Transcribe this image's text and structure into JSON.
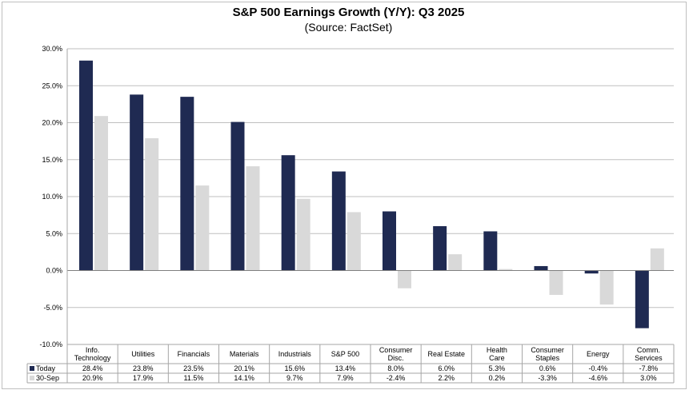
{
  "chart_data": {
    "type": "bar",
    "title": "S&P 500 Earnings Growth (Y/Y): Q3 2025",
    "subtitle": "(Source: FactSet)",
    "categories": [
      "Info. Technology",
      "Utilities",
      "Financials",
      "Materials",
      "Industrials",
      "S&P 500",
      "Consumer Disc.",
      "Real Estate",
      "Health Care",
      "Consumer Staples",
      "Energy",
      "Comm. Services"
    ],
    "category_lines": [
      [
        "Info.",
        "Technology"
      ],
      [
        "Utilities"
      ],
      [
        "Financials"
      ],
      [
        "Materials"
      ],
      [
        "Industrials"
      ],
      [
        "S&P 500"
      ],
      [
        "Consumer",
        "Disc."
      ],
      [
        "Real Estate"
      ],
      [
        "Health",
        "Care"
      ],
      [
        "Consumer",
        "Staples"
      ],
      [
        "Energy"
      ],
      [
        "Comm.",
        "Services"
      ]
    ],
    "series": [
      {
        "name": "Today",
        "color": "#1f2a52",
        "values": [
          28.4,
          23.8,
          23.5,
          20.1,
          15.6,
          13.4,
          8.0,
          6.0,
          5.3,
          0.6,
          -0.4,
          -7.8
        ],
        "labels": [
          "28.4%",
          "23.8%",
          "23.5%",
          "20.1%",
          "15.6%",
          "13.4%",
          "8.0%",
          "6.0%",
          "5.3%",
          "0.6%",
          "-0.4%",
          "-7.8%"
        ]
      },
      {
        "name": "30-Sep",
        "color": "#d9d9d9",
        "values": [
          20.9,
          17.9,
          11.5,
          14.1,
          9.7,
          7.9,
          -2.4,
          2.2,
          0.2,
          -3.3,
          -4.6,
          3.0
        ],
        "labels": [
          "20.9%",
          "17.9%",
          "11.5%",
          "14.1%",
          "9.7%",
          "7.9%",
          "-2.4%",
          "2.2%",
          "0.2%",
          "-3.3%",
          "-4.6%",
          "3.0%"
        ]
      }
    ],
    "ylim": [
      -10,
      30
    ],
    "yticks": [
      30,
      25,
      20,
      15,
      10,
      5,
      0,
      -5,
      -10
    ],
    "ytick_labels": [
      "30.0%",
      "25.0%",
      "20.0%",
      "15.0%",
      "10.0%",
      "5.0%",
      "0.0%",
      "-5.0%",
      "-10.0%"
    ],
    "grid": true,
    "legend": "data-table"
  }
}
